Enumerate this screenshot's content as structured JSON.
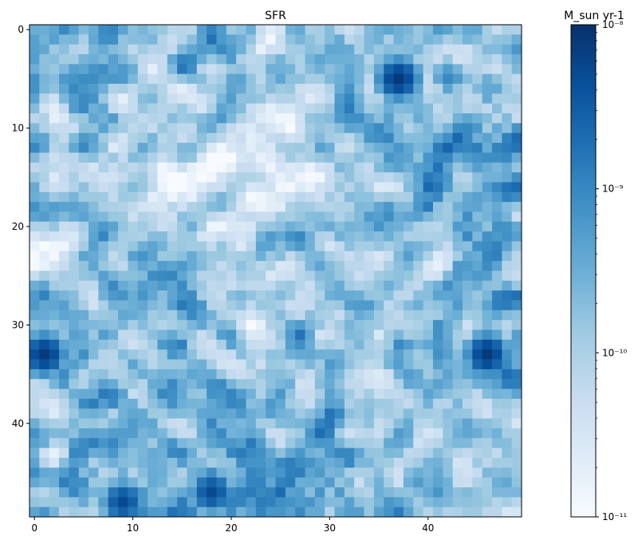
{
  "chart_data": {
    "type": "heatmap",
    "title": "SFR",
    "xlabel": "",
    "ylabel": "",
    "shape": [
      50,
      50
    ],
    "x_ticks": [
      0,
      10,
      20,
      30,
      40
    ],
    "y_ticks": [
      0,
      10,
      20,
      30,
      40
    ],
    "y_axis_inverted": true,
    "grid": false,
    "colormap": "Blues",
    "colormap_stops": [
      "#f7fbff",
      "#deebf7",
      "#c6dbef",
      "#9ecae1",
      "#6baed6",
      "#4292c6",
      "#2171b5",
      "#08519c",
      "#08306b"
    ],
    "color_scale": "log",
    "colorbar": {
      "label": "M_sun yr-1",
      "min": 1e-11,
      "max": 1e-08,
      "tick_values": [
        1e-11,
        1e-10,
        1e-09,
        1e-08
      ],
      "tick_labels": [
        "10⁻¹¹",
        "10⁻¹⁰",
        "10⁻⁹",
        "10⁻⁸"
      ]
    },
    "log10_values_coarse_5x5_block_means": {
      "note": "approximate log10(SFR) averaged over 10x10-cell blocks, rows top to bottom",
      "values": [
        [
          -9.6,
          -9.4,
          -10.2,
          -9.7,
          -10.0
        ],
        [
          -9.9,
          -10.6,
          -10.5,
          -9.5,
          -9.3
        ],
        [
          -9.9,
          -9.5,
          -9.9,
          -9.8,
          -9.7
        ],
        [
          -9.6,
          -9.9,
          -9.5,
          -10.0,
          -9.6
        ],
        [
          -9.9,
          -9.3,
          -9.5,
          -9.5,
          -10.1
        ]
      ]
    },
    "peak_cells": [
      {
        "row": 5,
        "col": 37,
        "log10": -8.1
      },
      {
        "row": 33,
        "col": 1,
        "log10": -8.1
      },
      {
        "row": 33,
        "col": 46,
        "log10": -8.1
      },
      {
        "row": 47,
        "col": 18,
        "log10": -8.3
      },
      {
        "row": 48,
        "col": 9,
        "log10": -8.3
      }
    ]
  }
}
